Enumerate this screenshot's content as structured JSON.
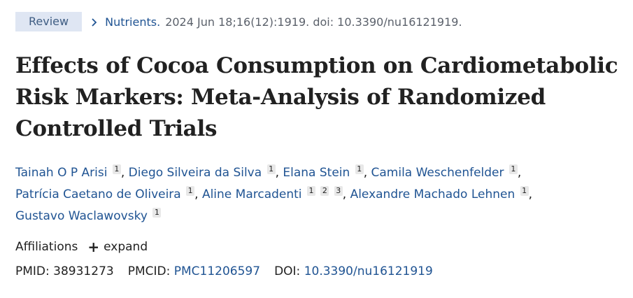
{
  "citation": {
    "type_badge": "Review",
    "journal": "Nutrients.",
    "details": "2024 Jun 18;16(12):1919. doi: 10.3390/nu16121919."
  },
  "title": "Effects of Cocoa Consumption on Cardiometabolic Risk Markers: Meta-Analysis of Randomized Controlled Trials",
  "authors": {
    "line1": [
      {
        "name": "Tainah O P Arisi",
        "affs": [
          "1"
        ],
        "sep": ","
      },
      {
        "name": "Diego Silveira da Silva",
        "affs": [
          "1"
        ],
        "sep": ","
      },
      {
        "name": "Elana Stein",
        "affs": [
          "1"
        ],
        "sep": ","
      },
      {
        "name": "Camila Weschenfelder",
        "affs": [
          "1"
        ],
        "sep": ","
      }
    ],
    "line2": [
      {
        "name": "Patrícia Caetano de Oliveira",
        "affs": [
          "1"
        ],
        "sep": ","
      },
      {
        "name": "Aline Marcadenti",
        "affs": [
          "1",
          "2",
          "3"
        ],
        "sep": ","
      },
      {
        "name": "Alexandre Machado Lehnen",
        "affs": [
          "1"
        ],
        "sep": ","
      }
    ],
    "line3": [
      {
        "name": "Gustavo Waclawovsky",
        "affs": [
          "1"
        ],
        "sep": ""
      }
    ]
  },
  "affiliations": {
    "label": "Affiliations",
    "expand_label": "expand",
    "icon": "plus-icon"
  },
  "identifiers": {
    "pmid_label": "PMID:",
    "pmid": "38931273",
    "pmcid_label": "PMCID:",
    "pmcid": "PMC11206597",
    "doi_label": "DOI:",
    "doi": "10.3390/nu16121919"
  },
  "colors": {
    "link": "#205493",
    "badge_bg": "#dfe6f3",
    "badge_text": "#3f5d83"
  }
}
